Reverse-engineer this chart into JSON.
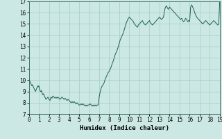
{
  "xlabel": "Humidex (Indice chaleur)",
  "ylabel": "",
  "bg_color": "#cce8e4",
  "grid_color": "#aacfcb",
  "line_color": "#1a5f50",
  "xlim": [
    0,
    19
  ],
  "ylim": [
    7,
    17
  ],
  "xticks": [
    0,
    1,
    2,
    3,
    4,
    5,
    6,
    7,
    8,
    9,
    10,
    11,
    12,
    13,
    14,
    15,
    16,
    17,
    18,
    19
  ],
  "yticks": [
    7,
    8,
    9,
    10,
    11,
    12,
    13,
    14,
    15,
    16,
    17
  ],
  "x": [
    0.0,
    0.05,
    0.1,
    0.15,
    0.2,
    0.25,
    0.3,
    0.35,
    0.4,
    0.45,
    0.5,
    0.55,
    0.6,
    0.65,
    0.7,
    0.75,
    0.8,
    0.85,
    0.9,
    0.95,
    1.0,
    1.05,
    1.1,
    1.15,
    1.2,
    1.25,
    1.3,
    1.35,
    1.4,
    1.45,
    1.5,
    1.6,
    1.7,
    1.8,
    1.9,
    2.0,
    2.1,
    2.2,
    2.3,
    2.4,
    2.5,
    2.6,
    2.7,
    2.8,
    2.9,
    3.0,
    3.1,
    3.2,
    3.3,
    3.4,
    3.5,
    3.6,
    3.7,
    3.8,
    3.9,
    4.0,
    4.1,
    4.2,
    4.3,
    4.4,
    4.5,
    4.6,
    4.7,
    4.8,
    4.9,
    5.0,
    5.1,
    5.2,
    5.3,
    5.4,
    5.5,
    5.6,
    5.7,
    5.8,
    5.9,
    6.0,
    6.1,
    6.2,
    6.3,
    6.4,
    6.5,
    6.6,
    6.7,
    6.8,
    6.9,
    7.0,
    7.1,
    7.2,
    7.3,
    7.4,
    7.5,
    7.6,
    7.7,
    7.8,
    7.9,
    8.0,
    8.1,
    8.2,
    8.3,
    8.4,
    8.5,
    8.6,
    8.7,
    8.8,
    8.9,
    9.0,
    9.1,
    9.2,
    9.3,
    9.4,
    9.5,
    9.6,
    9.7,
    9.8,
    9.9,
    10.0,
    10.1,
    10.2,
    10.3,
    10.4,
    10.5,
    10.6,
    10.7,
    10.8,
    10.9,
    11.0,
    11.1,
    11.2,
    11.3,
    11.4,
    11.5,
    11.6,
    11.7,
    11.8,
    11.9,
    12.0,
    12.1,
    12.2,
    12.3,
    12.4,
    12.5,
    12.6,
    12.7,
    12.8,
    12.9,
    13.0,
    13.1,
    13.2,
    13.3,
    13.4,
    13.5,
    13.6,
    13.7,
    13.8,
    13.9,
    14.0,
    14.1,
    14.2,
    14.3,
    14.4,
    14.5,
    14.6,
    14.7,
    14.8,
    14.9,
    15.0,
    15.1,
    15.2,
    15.3,
    15.4,
    15.5,
    15.6,
    15.7,
    15.8,
    15.9,
    16.0,
    16.1,
    16.2,
    16.3,
    16.4,
    16.5,
    16.6,
    16.7,
    16.8,
    16.9,
    17.0,
    17.1,
    17.2,
    17.3,
    17.4,
    17.5,
    17.6,
    17.7,
    17.8,
    17.9,
    18.0,
    18.1,
    18.2,
    18.3,
    18.4,
    18.5,
    18.6,
    18.7,
    18.8,
    18.9,
    19.0
  ],
  "y": [
    10.1,
    10.0,
    9.9,
    9.8,
    9.7,
    9.6,
    9.5,
    9.6,
    9.5,
    9.4,
    9.3,
    9.2,
    9.1,
    9.0,
    9.1,
    9.2,
    9.3,
    9.4,
    9.5,
    9.4,
    9.5,
    9.3,
    9.1,
    9.0,
    9.0,
    9.1,
    8.9,
    8.8,
    8.7,
    8.8,
    8.7,
    8.5,
    8.3,
    8.4,
    8.5,
    8.3,
    8.2,
    8.5,
    8.4,
    8.6,
    8.5,
    8.4,
    8.5,
    8.4,
    8.5,
    8.4,
    8.3,
    8.4,
    8.5,
    8.4,
    8.3,
    8.4,
    8.3,
    8.2,
    8.3,
    8.2,
    8.1,
    8.0,
    8.1,
    8.0,
    8.1,
    8.0,
    7.9,
    8.0,
    7.9,
    7.8,
    7.8,
    7.9,
    7.8,
    7.9,
    7.8,
    7.7,
    7.8,
    7.7,
    7.8,
    7.8,
    7.9,
    7.8,
    7.7,
    7.8,
    7.7,
    7.8,
    7.7,
    7.8,
    7.8,
    8.5,
    9.0,
    9.3,
    9.5,
    9.6,
    9.8,
    10.1,
    10.3,
    10.5,
    10.7,
    10.8,
    11.0,
    11.2,
    11.5,
    11.7,
    12.0,
    12.3,
    12.5,
    12.7,
    13.0,
    13.3,
    13.6,
    13.8,
    14.0,
    14.2,
    14.5,
    14.8,
    15.1,
    15.3,
    15.5,
    15.6,
    15.5,
    15.4,
    15.3,
    15.2,
    15.0,
    14.9,
    14.8,
    14.7,
    14.9,
    15.0,
    15.1,
    15.2,
    15.3,
    15.1,
    15.0,
    14.9,
    15.0,
    15.1,
    15.2,
    15.3,
    15.1,
    15.0,
    14.9,
    15.0,
    15.1,
    15.2,
    15.3,
    15.4,
    15.5,
    15.6,
    15.5,
    15.4,
    15.5,
    15.6,
    16.2,
    16.5,
    16.6,
    16.4,
    16.3,
    16.5,
    16.4,
    16.3,
    16.2,
    16.1,
    16.0,
    15.9,
    15.8,
    15.7,
    15.6,
    15.5,
    15.4,
    15.5,
    15.3,
    15.2,
    15.3,
    15.5,
    15.4,
    15.2,
    15.3,
    15.2,
    16.5,
    16.7,
    16.5,
    16.3,
    16.0,
    15.8,
    15.6,
    15.5,
    15.4,
    15.3,
    15.2,
    15.1,
    15.0,
    15.1,
    15.2,
    15.3,
    15.2,
    15.1,
    15.0,
    14.9,
    15.0,
    15.1,
    15.2,
    15.3,
    15.2,
    15.1,
    15.0,
    14.9,
    15.0,
    17.2
  ]
}
